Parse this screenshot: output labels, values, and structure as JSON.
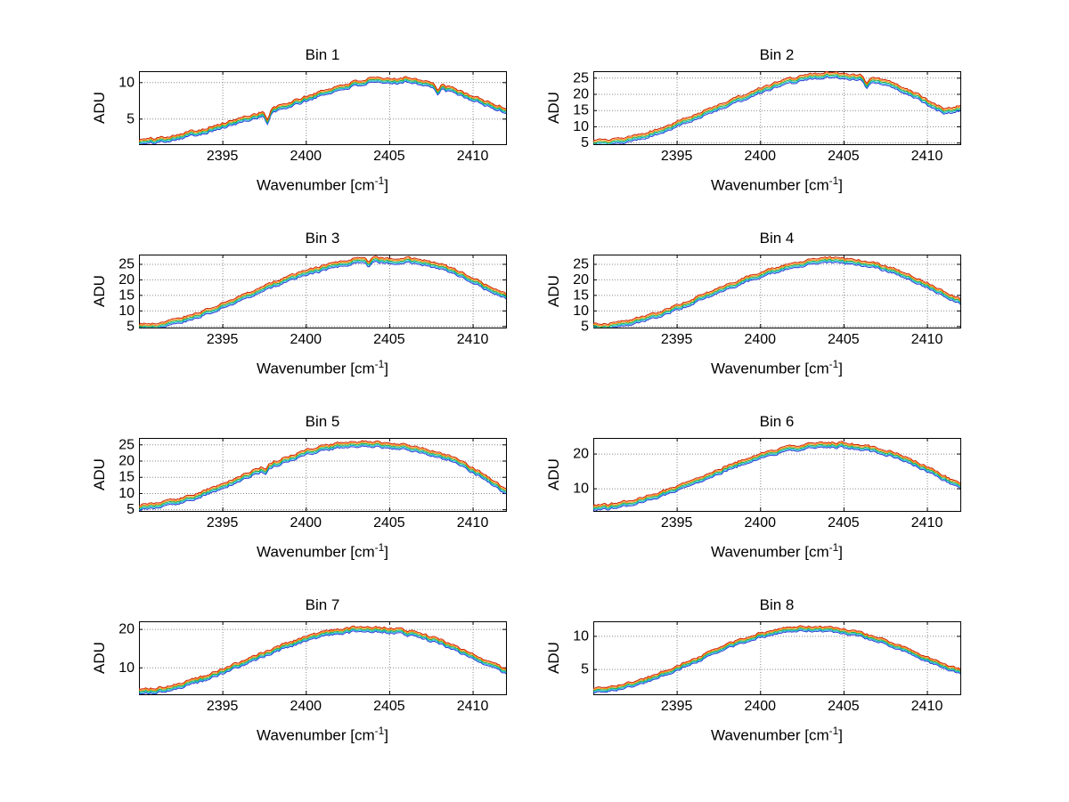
{
  "chart_data": {
    "type": "line",
    "layout": {
      "rows": 4,
      "cols": 2
    },
    "common": {
      "xlabel": {
        "pre": "Wavenumber [cm",
        "sup": "-1",
        "post": "]"
      },
      "ylabel": "ADU",
      "xlim": [
        2390,
        2412
      ],
      "xticks": [
        2395,
        2400,
        2405,
        2410
      ],
      "x": [
        2390,
        2391,
        2392,
        2393,
        2394,
        2395,
        2396,
        2397,
        2398,
        2399,
        2400,
        2401,
        2402,
        2403,
        2404,
        2405,
        2406,
        2407,
        2408,
        2409,
        2410,
        2411,
        2412
      ],
      "grid": "dotted",
      "legend": "none",
      "background": "#ffffff",
      "axis_color": "#000000",
      "grid_color": "#8a8a8a",
      "series_colors": [
        "#cc2200",
        "#ff8800",
        "#1faa3c",
        "#00b8cc",
        "#2b3bd6"
      ],
      "series_offset_frac": [
        0.032,
        0.016,
        0,
        -0.016,
        -0.032
      ]
    },
    "charts": [
      {
        "title": "Bin 1",
        "ylim": [
          1.5,
          11.5
        ],
        "yticks": [
          5,
          10
        ],
        "values": [
          1.8,
          2.0,
          2.4,
          2.9,
          3.4,
          4.0,
          4.7,
          5.4,
          6.1,
          6.9,
          7.7,
          8.5,
          9.2,
          9.8,
          10.2,
          10.1,
          10.4,
          10.0,
          9.4,
          8.7,
          7.8,
          6.9,
          6.1
        ],
        "noise_amp": 0.16,
        "seed": 101,
        "spikes": [
          {
            "x": 2397.7,
            "depth": 1.3
          },
          {
            "x": 2407.9,
            "depth": 0.9
          }
        ]
      },
      {
        "title": "Bin 2",
        "ylim": [
          4.5,
          27
        ],
        "yticks": [
          5,
          10,
          15,
          20,
          25
        ],
        "values": [
          4.8,
          5.0,
          5.8,
          7.0,
          8.6,
          10.5,
          12.6,
          14.8,
          16.9,
          19.0,
          21.0,
          22.8,
          24.2,
          25.3,
          25.9,
          25.6,
          25.1,
          24.2,
          22.6,
          20.3,
          17.6,
          14.8,
          15.6
        ],
        "noise_amp": 0.3,
        "seed": 102,
        "spikes": [
          {
            "x": 2406.4,
            "depth": 2.0
          }
        ]
      },
      {
        "title": "Bin 3",
        "ylim": [
          4.5,
          28
        ],
        "yticks": [
          5,
          10,
          15,
          20,
          25
        ],
        "values": [
          4.8,
          5.2,
          6.2,
          7.6,
          9.4,
          11.5,
          13.8,
          16.0,
          18.2,
          20.2,
          22.0,
          23.6,
          25.0,
          26.0,
          26.4,
          25.9,
          26.3,
          25.6,
          24.3,
          22.3,
          19.8,
          17.0,
          14.6
        ],
        "noise_amp": 0.32,
        "seed": 103,
        "spikes": [
          {
            "x": 2403.8,
            "depth": 1.5
          }
        ]
      },
      {
        "title": "Bin 4",
        "ylim": [
          4.5,
          28
        ],
        "yticks": [
          5,
          10,
          15,
          20,
          25
        ],
        "values": [
          4.7,
          5.0,
          5.9,
          7.2,
          8.9,
          10.9,
          13.1,
          15.3,
          17.5,
          19.6,
          21.5,
          23.2,
          24.6,
          25.6,
          26.2,
          26.0,
          25.4,
          24.4,
          22.8,
          20.7,
          18.1,
          15.3,
          12.8
        ],
        "noise_amp": 0.3,
        "seed": 104,
        "spikes": []
      },
      {
        "title": "Bin 5",
        "ylim": [
          4.5,
          27
        ],
        "yticks": [
          5,
          10,
          15,
          20,
          25
        ],
        "values": [
          5.6,
          6.0,
          7.0,
          8.4,
          10.1,
          12.1,
          14.3,
          16.6,
          18.8,
          20.8,
          22.5,
          23.8,
          24.7,
          25.2,
          25.1,
          24.7,
          24.1,
          23.2,
          21.8,
          19.8,
          17.2,
          14.0,
          10.5
        ],
        "noise_amp": 0.32,
        "seed": 105,
        "spikes": [
          {
            "x": 2397.6,
            "depth": 1.2
          }
        ]
      },
      {
        "title": "Bin 6",
        "ylim": [
          3.5,
          24.5
        ],
        "yticks": [
          10,
          20
        ],
        "values": [
          4.5,
          4.8,
          5.6,
          6.8,
          8.3,
          10.0,
          11.9,
          13.9,
          15.8,
          17.6,
          19.2,
          20.5,
          21.5,
          22.2,
          22.6,
          22.4,
          21.9,
          21.0,
          19.6,
          17.8,
          15.6,
          13.1,
          10.4
        ],
        "noise_amp": 0.3,
        "seed": 106,
        "spikes": []
      },
      {
        "title": "Bin 7",
        "ylim": [
          3,
          22
        ],
        "yticks": [
          10,
          20
        ],
        "values": [
          3.6,
          4.0,
          4.8,
          5.9,
          7.3,
          8.9,
          10.7,
          12.5,
          14.3,
          16.0,
          17.4,
          18.6,
          19.4,
          19.9,
          20.0,
          19.7,
          19.1,
          18.1,
          16.7,
          15.0,
          13.0,
          10.9,
          8.9
        ],
        "noise_amp": 0.28,
        "seed": 107,
        "spikes": []
      },
      {
        "title": "Bin 8",
        "ylim": [
          1.2,
          12.2
        ],
        "yticks": [
          5,
          10
        ],
        "values": [
          1.8,
          2.0,
          2.5,
          3.2,
          4.1,
          5.1,
          6.2,
          7.3,
          8.4,
          9.3,
          10.1,
          10.7,
          11.0,
          11.1,
          11.0,
          10.7,
          10.2,
          9.5,
          8.6,
          7.6,
          6.5,
          5.5,
          4.7
        ],
        "noise_amp": 0.14,
        "seed": 108,
        "spikes": []
      }
    ]
  }
}
